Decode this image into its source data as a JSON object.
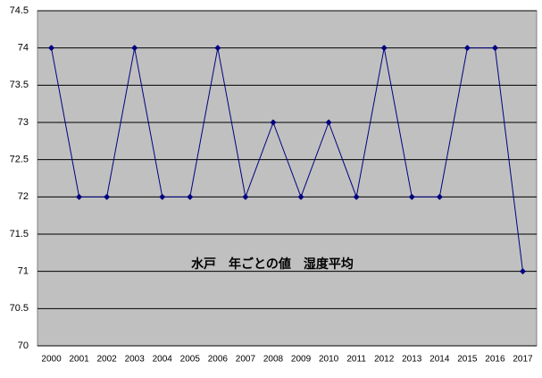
{
  "chart_data": {
    "type": "line",
    "title": "水戸　年ごとの値　湿度平均",
    "categories": [
      "2000",
      "2001",
      "2002",
      "2003",
      "2004",
      "2005",
      "2006",
      "2007",
      "2008",
      "2009",
      "2010",
      "2011",
      "2012",
      "2013",
      "2014",
      "2015",
      "2016",
      "2017"
    ],
    "values": [
      74,
      72,
      72,
      74,
      72,
      72,
      74,
      72,
      73,
      72,
      73,
      72,
      74,
      72,
      72,
      74,
      74,
      71
    ],
    "color": "#000080",
    "ylim": [
      70,
      74.5
    ],
    "yticks": [
      70,
      70.5,
      71,
      71.5,
      72,
      72.5,
      73,
      73.5,
      74,
      74.5
    ],
    "grid": true
  }
}
